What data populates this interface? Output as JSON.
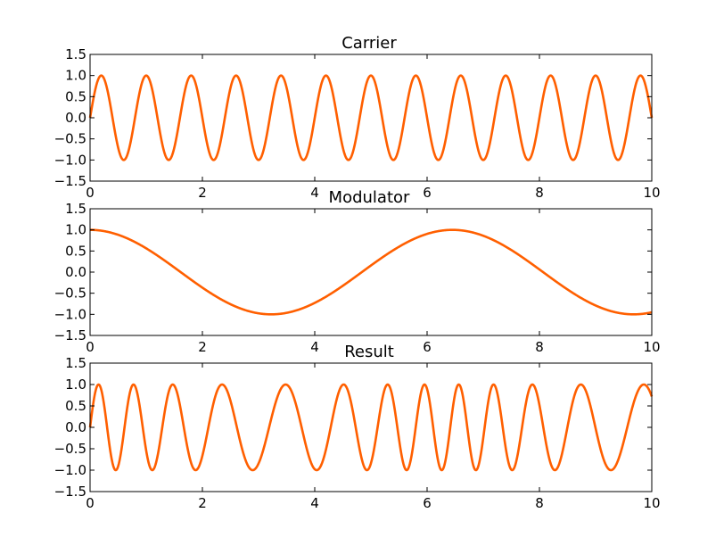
{
  "chart_data": [
    {
      "type": "line",
      "title": "Carrier",
      "xlabel": "",
      "ylabel": "",
      "xlim": [
        0,
        10
      ],
      "ylim": [
        -1.5,
        1.5
      ],
      "x_ticks": [
        "0",
        "2",
        "4",
        "6",
        "8",
        "10"
      ],
      "y_ticks": [
        "-1.5",
        "-1.0",
        "-0.5",
        "0.0",
        "0.5",
        "1.0",
        "1.5"
      ],
      "grid": false,
      "line_color": "#ff5f00",
      "series": [
        {
          "function": "sin",
          "amplitude": 1,
          "frequency": 1.25,
          "phase": 0
        }
      ]
    },
    {
      "type": "line",
      "title": "Modulator",
      "xlabel": "",
      "ylabel": "",
      "xlim": [
        0,
        10
      ],
      "ylim": [
        -1.5,
        1.5
      ],
      "x_ticks": [
        "0",
        "2",
        "4",
        "6",
        "8",
        "10"
      ],
      "y_ticks": [
        "-1.5",
        "-1.0",
        "-0.5",
        "0.0",
        "0.5",
        "1.0",
        "1.5"
      ],
      "grid": false,
      "line_color": "#ff5f00",
      "series": [
        {
          "function": "cos",
          "amplitude": 1,
          "frequency": 0.155,
          "phase": 0
        }
      ]
    },
    {
      "type": "line",
      "title": "Result",
      "xlabel": "",
      "ylabel": "",
      "xlim": [
        0,
        10
      ],
      "ylim": [
        -1.5,
        1.5
      ],
      "x_ticks": [
        "0",
        "2",
        "4",
        "6",
        "8",
        "10"
      ],
      "y_ticks": [
        "-1.5",
        "-1.0",
        "-0.5",
        "0.0",
        "0.5",
        "1.0",
        "1.5"
      ],
      "grid": false,
      "line_color": "#ff5f00",
      "series": [
        {
          "function": "fm",
          "amplitude": 1,
          "carrier_frequency": 1.25,
          "modulator_frequency": 0.155,
          "modulation_index": 2.6
        }
      ]
    }
  ]
}
